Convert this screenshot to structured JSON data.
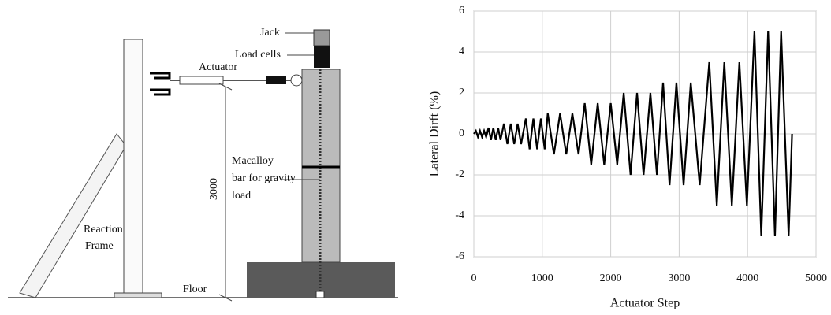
{
  "diagram": {
    "labels": [
      "Jack",
      "Load cells",
      "Actuator",
      "Macalloy",
      "bar for gravity",
      "load",
      "3000",
      "Reaction",
      "Frame",
      "Floor"
    ]
  },
  "chart_data": {
    "type": "line",
    "x_label": "Actuator  Step",
    "y_label": "Lateral Dirft (%)",
    "color": "#000000",
    "x": [
      0,
      30,
      60,
      90,
      120,
      150,
      180,
      215,
      250,
      285,
      320,
      355,
      390,
      440,
      490,
      540,
      590,
      640,
      690,
      760,
      815,
      870,
      925,
      980,
      1035,
      1080,
      1170,
      1260,
      1350,
      1440,
      1530,
      1620,
      1715,
      1810,
      1905,
      2000,
      2095,
      2190,
      2290,
      2385,
      2480,
      2580,
      2675,
      2765,
      2860,
      2960,
      3065,
      3170,
      3300,
      3440,
      3550,
      3660,
      3770,
      3880,
      3990,
      4100,
      4200,
      4300,
      4400,
      4490,
      4600,
      4650
    ],
    "values": [
      0,
      0.15,
      -0.15,
      0.15,
      -0.15,
      0.15,
      -0.15,
      0.3,
      -0.3,
      0.3,
      -0.3,
      0.3,
      -0.3,
      0.5,
      -0.5,
      0.5,
      -0.5,
      0.5,
      -0.5,
      0.75,
      -0.75,
      0.75,
      -0.75,
      0.75,
      -0.75,
      1,
      -1,
      1,
      -1,
      1,
      -1,
      1.5,
      -1.5,
      1.5,
      -1.5,
      1.5,
      -1.5,
      2,
      -2,
      2,
      -2,
      2,
      -2,
      2.5,
      -2.5,
      2.5,
      -2.5,
      2.5,
      -2.5,
      3.5,
      -3.5,
      3.5,
      -3.5,
      3.5,
      -3.5,
      5,
      -5,
      5,
      -5,
      5,
      -5,
      0
    ],
    "xlim": [
      0,
      5000
    ],
    "xticks": [
      0,
      1000,
      2000,
      3000,
      4000,
      5000
    ],
    "ylim": [
      -6,
      6
    ],
    "yticks": [
      -6,
      -4,
      -2,
      0,
      2,
      4,
      6
    ],
    "grid": true
  }
}
